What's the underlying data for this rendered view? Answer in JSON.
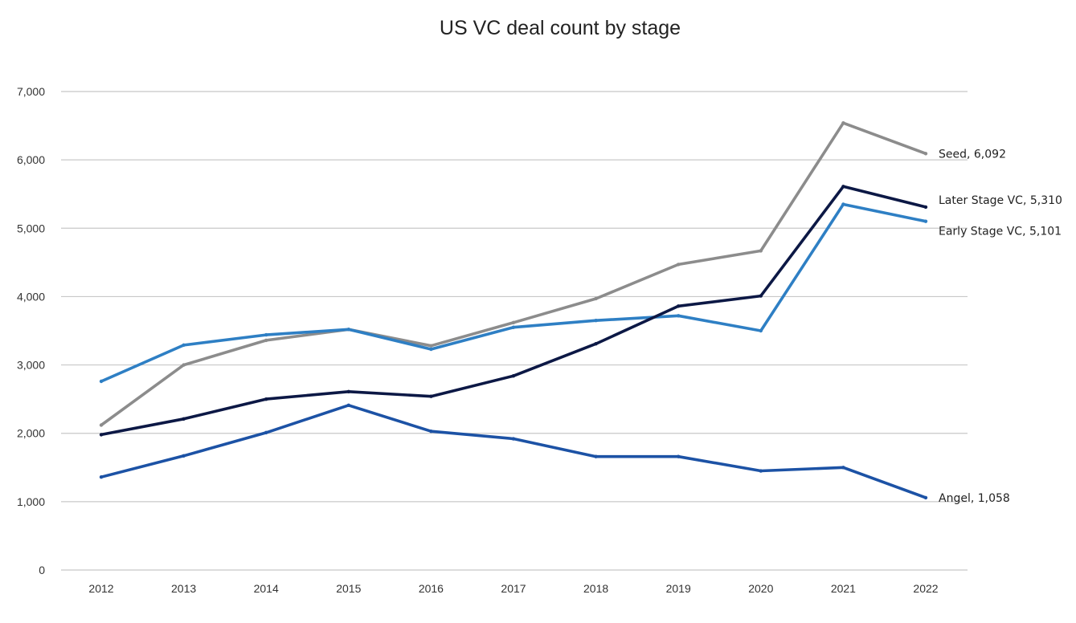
{
  "chart_data": {
    "type": "line",
    "title": "US VC deal count by stage",
    "xlabel": "",
    "ylabel": "",
    "categories": [
      "2012",
      "2013",
      "2014",
      "2015",
      "2016",
      "2017",
      "2018",
      "2019",
      "2020",
      "2021",
      "2022"
    ],
    "ylim": [
      0,
      7000
    ],
    "yticks": [
      0,
      1000,
      2000,
      3000,
      4000,
      5000,
      6000,
      7000
    ],
    "ytick_labels": [
      "0",
      "1,000",
      "2,000",
      "3,000",
      "4,000",
      "5,000",
      "6,000",
      "7,000"
    ],
    "grid": true,
    "legend": "none (series labeled at line ends)",
    "series": [
      {
        "name": "Seed",
        "color": "#8c8c8c",
        "values": [
          2120,
          3000,
          3360,
          3520,
          3280,
          3620,
          3970,
          4470,
          4670,
          6540,
          6092
        ],
        "end_label": "Seed, 6,092"
      },
      {
        "name": "Early Stage VC",
        "color": "#2e7fc4",
        "values": [
          2760,
          3290,
          3440,
          3520,
          3230,
          3550,
          3650,
          3720,
          3500,
          5350,
          5101
        ],
        "end_label": "Early Stage VC, 5,101"
      },
      {
        "name": "Later Stage VC",
        "color": "#0c1845",
        "values": [
          1980,
          2210,
          2500,
          2610,
          2540,
          2840,
          3310,
          3860,
          4010,
          5610,
          5310
        ],
        "end_label": "Later Stage VC, 5,310"
      },
      {
        "name": "Angel",
        "color": "#1c52a5",
        "values": [
          1360,
          1670,
          2010,
          2410,
          2030,
          1920,
          1660,
          1660,
          1450,
          1500,
          1058
        ],
        "end_label": "Angel, 1,058"
      }
    ]
  }
}
